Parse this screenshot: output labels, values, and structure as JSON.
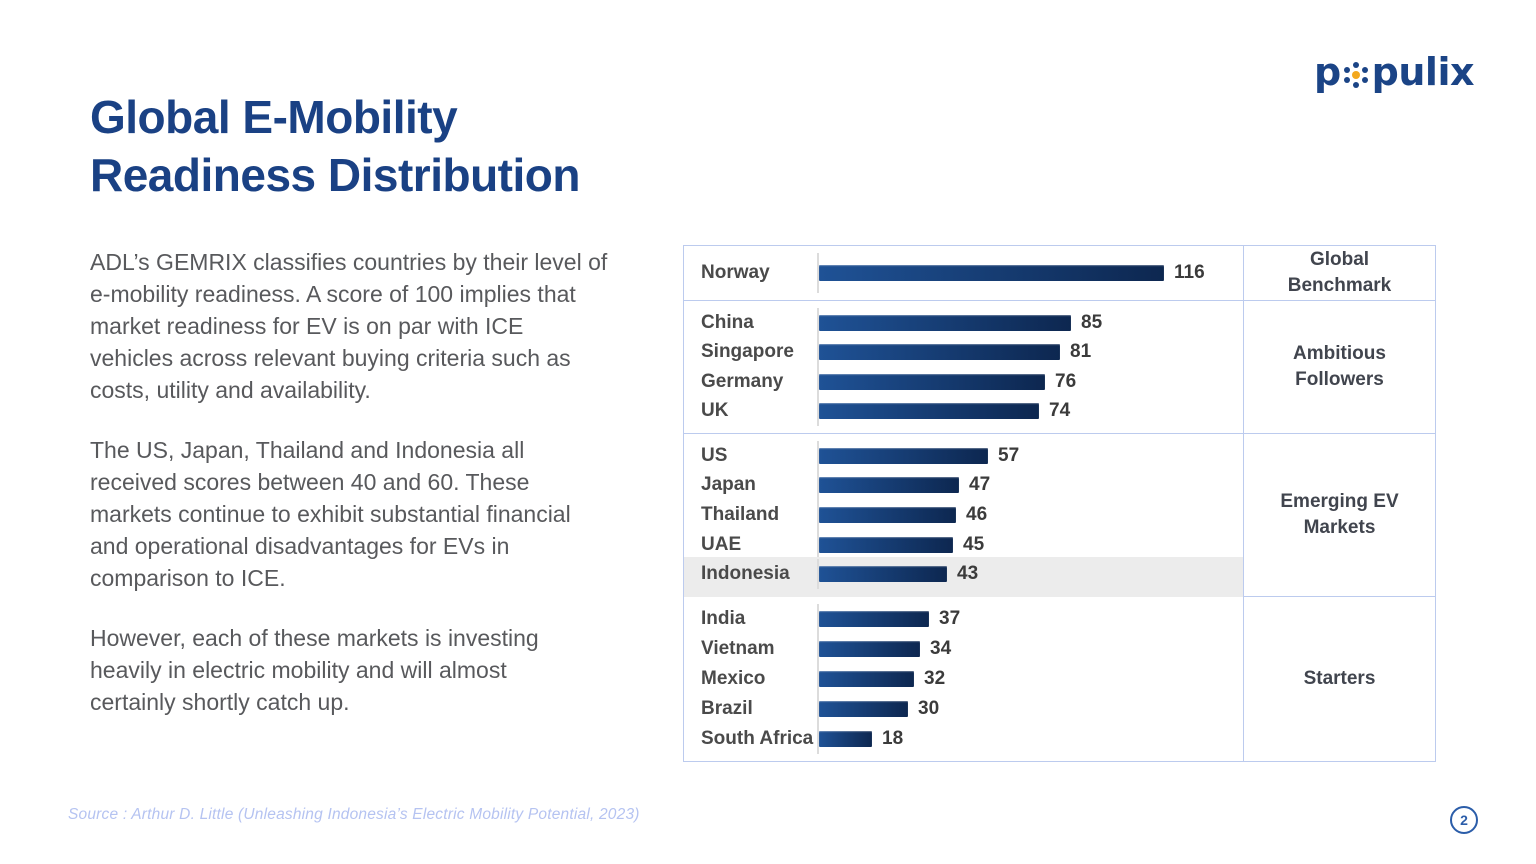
{
  "logo": {
    "text_left": "p",
    "text_right": "pulix",
    "name": "populix"
  },
  "header": {
    "title_line1": "Global E-Mobility",
    "title_line2": "Readiness Distribution"
  },
  "body": {
    "paragraphs": [
      "ADL’s GEMRIX classifies countries by their level of\ne-mobility readiness. A score of 100 implies that\nmarket readiness for EV is on par with ICE\nvehicles across relevant buying criteria such as\ncosts, utility and availability.",
      "The US, Japan, Thailand and Indonesia all\nreceived scores between 40 and 60. These\nmarkets continue to exhibit substantial financial\nand operational disadvantages for EVs in\ncomparison to ICE.",
      "However, each of these markets is investing\nheavily in electric mobility and will almost\ncertainly shortly catch up."
    ]
  },
  "source": "Source : Arthur D. Little (Unleashing Indonesia’s Electric Mobility Potential, 2023)",
  "meta": {
    "page_number": "2"
  },
  "chart_data": {
    "type": "bar",
    "orientation": "horizontal",
    "value_range": [
      0,
      120
    ],
    "groups": [
      {
        "label": "Global\nBenchmark",
        "rows": [
          {
            "country": "Norway",
            "value": 116,
            "highlight": false
          }
        ]
      },
      {
        "label": "Ambitious\nFollowers",
        "rows": [
          {
            "country": "China",
            "value": 85,
            "highlight": false
          },
          {
            "country": "Singapore",
            "value": 81,
            "highlight": false
          },
          {
            "country": "Germany",
            "value": 76,
            "highlight": false
          },
          {
            "country": "UK",
            "value": 74,
            "highlight": false
          }
        ]
      },
      {
        "label": "Emerging EV\nMarkets",
        "rows": [
          {
            "country": "US",
            "value": 57,
            "highlight": false
          },
          {
            "country": "Japan",
            "value": 47,
            "highlight": false
          },
          {
            "country": "Thailand",
            "value": 46,
            "highlight": false
          },
          {
            "country": "UAE",
            "value": 45,
            "highlight": false
          },
          {
            "country": "Indonesia",
            "value": 43,
            "highlight": true
          }
        ]
      },
      {
        "label": "Starters",
        "rows": [
          {
            "country": "India",
            "value": 37,
            "highlight": false
          },
          {
            "country": "Vietnam",
            "value": 34,
            "highlight": false
          },
          {
            "country": "Mexico",
            "value": 32,
            "highlight": false
          },
          {
            "country": "Brazil",
            "value": 30,
            "highlight": false
          },
          {
            "country": "South Africa",
            "value": 18,
            "highlight": false
          }
        ]
      }
    ],
    "colors": {
      "bar_gradient_start": "#1f5296",
      "bar_gradient_end": "#0d2750",
      "highlight_row_bg": "#ececec",
      "table_border": "#bccbee",
      "title_navy": "#1a4184",
      "logo_navy": "#1b4486",
      "logo_yellow": "#f3a81d",
      "page_badge": "#2b5da9"
    }
  }
}
